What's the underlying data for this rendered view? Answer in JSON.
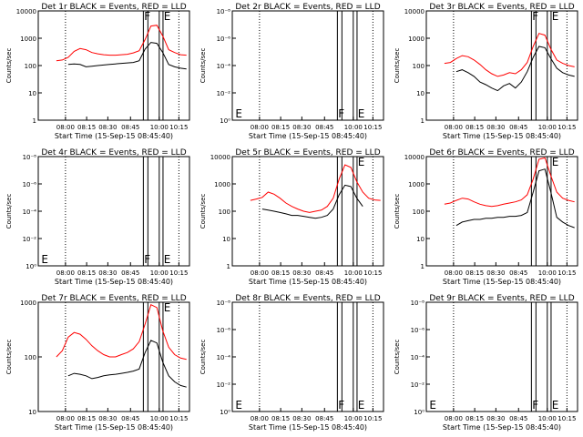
{
  "colors": {
    "events": "#000000",
    "lld": "#ff0000",
    "axes": "#000000"
  },
  "chart_data": [
    {
      "type": "line",
      "title": "Det 1r BLACK = Events, RED = LLD",
      "ylabel": "Counts/sec",
      "xlabel": "Start Time (15-Sep-15 08:45:40)",
      "x_ticks": [
        "08:00",
        "08:15",
        "08:30",
        "08:45",
        "10:00",
        "10:15"
      ],
      "y_scale": "log",
      "ylim": [
        1,
        10000
      ],
      "y_ticks": [
        "1",
        "10",
        "100",
        "1000",
        "10000"
      ],
      "markers": [
        "F",
        "E"
      ],
      "series": [
        {
          "color": "red",
          "values": [
            150,
            160,
            200,
            330,
            420,
            380,
            300,
            270,
            250,
            240,
            240,
            250,
            260,
            290,
            350,
            900,
            2800,
            3000,
            1200,
            380,
            300,
            250,
            240
          ]
        },
        {
          "color": "black",
          "values": [
            null,
            null,
            110,
            115,
            110,
            90,
            95,
            100,
            105,
            110,
            115,
            120,
            125,
            130,
            150,
            400,
            700,
            650,
            300,
            110,
            90,
            80,
            75
          ]
        }
      ]
    },
    {
      "type": "line",
      "title": "Det 2r BLACK = Events, RED = LLD",
      "ylabel": "Counts/sec",
      "xlabel": "Start Time (15-Sep-15 08:45:40)",
      "x_ticks": [
        "08:00",
        "08:15",
        "08:30",
        "08:45",
        "10:00",
        "10:15"
      ],
      "y_scale": "log",
      "y_ticks": [
        "10⁰",
        "10⁻²",
        "10⁻⁴",
        "10⁻⁶",
        "10⁻⁸"
      ],
      "markers": [
        "E",
        "F",
        "E"
      ],
      "series": []
    },
    {
      "type": "line",
      "title": "Det 3r BLACK = Events, RED = LLD",
      "ylabel": "Counts/sec",
      "xlabel": "Start Time (15-Sep-15 08:45:40)",
      "x_ticks": [
        "08:00",
        "08:15",
        "08:30",
        "08:45",
        "10:00",
        "10:15"
      ],
      "y_scale": "log",
      "ylim": [
        1,
        10000
      ],
      "y_ticks": [
        "1",
        "10",
        "100",
        "1000",
        "10000"
      ],
      "markers": [
        "F",
        "E"
      ],
      "series": [
        {
          "color": "red",
          "values": [
            120,
            130,
            180,
            230,
            210,
            160,
            110,
            70,
            50,
            40,
            45,
            55,
            50,
            70,
            130,
            500,
            1500,
            1300,
            400,
            160,
            120,
            100,
            90
          ]
        },
        {
          "color": "black",
          "values": [
            null,
            null,
            60,
            70,
            55,
            40,
            25,
            20,
            15,
            12,
            18,
            22,
            15,
            25,
            60,
            200,
            500,
            450,
            180,
            80,
            55,
            45,
            40
          ]
        }
      ]
    },
    {
      "type": "line",
      "title": "Det 4r BLACK = Events, RED = LLD",
      "ylabel": "Counts/sec",
      "xlabel": "Start Time (15-Sep-15 08:45:40)",
      "x_ticks": [
        "08:00",
        "08:15",
        "08:30",
        "08:45",
        "10:00",
        "10:15"
      ],
      "y_scale": "log",
      "y_ticks": [
        "10⁰",
        "10⁻²",
        "10⁻⁴",
        "10⁻⁶",
        "10⁻⁸"
      ],
      "markers": [
        "E",
        "F",
        "E"
      ],
      "series": []
    },
    {
      "type": "line",
      "title": "Det 5r BLACK = Events, RED = LLD",
      "ylabel": "Counts/sec",
      "xlabel": "Start Time (15-Sep-15 08:45:40)",
      "x_ticks": [
        "08:00",
        "08:15",
        "08:30",
        "08:45",
        "10:00",
        "10:15"
      ],
      "y_scale": "log",
      "ylim": [
        1,
        10000
      ],
      "y_ticks": [
        "1",
        "10",
        "100",
        "1000",
        "10000"
      ],
      "markers": [
        "E"
      ],
      "series": [
        {
          "color": "red",
          "values": [
            250,
            280,
            320,
            500,
            420,
            300,
            200,
            150,
            120,
            100,
            90,
            100,
            110,
            150,
            300,
            1500,
            5000,
            4000,
            1200,
            500,
            300,
            260,
            250
          ]
        },
        {
          "color": "black",
          "values": [
            null,
            null,
            120,
            110,
            100,
            90,
            80,
            70,
            70,
            65,
            60,
            55,
            60,
            70,
            120,
            400,
            900,
            800,
            300,
            150,
            null,
            null,
            null
          ]
        }
      ]
    },
    {
      "type": "line",
      "title": "Det 6r BLACK = Events, RED = LLD",
      "ylabel": "Counts/sec",
      "xlabel": "Start Time (15-Sep-15 08:45:40)",
      "x_ticks": [
        "08:00",
        "08:15",
        "08:30",
        "08:45",
        "10:00",
        "10:15"
      ],
      "y_scale": "log",
      "ylim": [
        1,
        10000
      ],
      "y_ticks": [
        "1",
        "10",
        "100",
        "1000",
        "10000"
      ],
      "markers": [
        "E"
      ],
      "series": [
        {
          "color": "red",
          "values": [
            180,
            200,
            250,
            300,
            280,
            220,
            180,
            160,
            150,
            160,
            180,
            200,
            220,
            260,
            400,
            1500,
            8000,
            9000,
            2000,
            500,
            300,
            250,
            220
          ]
        },
        {
          "color": "black",
          "values": [
            null,
            null,
            30,
            40,
            45,
            50,
            50,
            55,
            55,
            60,
            60,
            65,
            65,
            70,
            90,
            500,
            3000,
            3500,
            500,
            60,
            40,
            30,
            25
          ]
        }
      ]
    },
    {
      "type": "line",
      "title": "Det 7r BLACK = Events, RED = LLD",
      "ylabel": "Counts/sec",
      "xlabel": "Start Time (15-Sep-15 08:45:40)",
      "x_ticks": [
        "08:00",
        "08:15",
        "08:30",
        "08:45",
        "10:00",
        "10:15"
      ],
      "y_scale": "log",
      "ylim": [
        10,
        1000
      ],
      "y_ticks": [
        "10",
        "100",
        "1000"
      ],
      "markers": [
        "E"
      ],
      "series": [
        {
          "color": "red",
          "values": [
            100,
            130,
            230,
            280,
            260,
            210,
            160,
            130,
            110,
            100,
            100,
            110,
            120,
            140,
            190,
            400,
            900,
            800,
            300,
            150,
            110,
            95,
            90
          ]
        },
        {
          "color": "black",
          "values": [
            null,
            null,
            45,
            50,
            48,
            45,
            40,
            42,
            45,
            47,
            48,
            50,
            52,
            55,
            60,
            120,
            200,
            180,
            80,
            45,
            35,
            30,
            28
          ]
        }
      ]
    },
    {
      "type": "line",
      "title": "Det 8r BLACK = Events, RED = LLD",
      "ylabel": "Counts/sec",
      "xlabel": "Start Time (15-Sep-15 08:45:40)",
      "x_ticks": [
        "08:00",
        "08:15",
        "08:30",
        "08:45",
        "10:00",
        "10:15"
      ],
      "y_scale": "log",
      "y_ticks": [
        "10⁰",
        "10⁻²",
        "10⁻⁴",
        "10⁻⁶",
        "10⁻⁸"
      ],
      "markers": [
        "E",
        "F",
        "E"
      ],
      "series": []
    },
    {
      "type": "line",
      "title": "Det 9r BLACK = Events, RED = LLD",
      "ylabel": "Counts/sec",
      "xlabel": "Start Time (15-Sep-15 08:45:40)",
      "x_ticks": [
        "08:00",
        "08:15",
        "08:30",
        "08:45",
        "10:00",
        "10:15"
      ],
      "y_scale": "log",
      "y_ticks": [
        "10⁰",
        "10⁻²",
        "10⁻⁴",
        "10⁻⁶",
        "10⁻⁸"
      ],
      "markers": [
        "E",
        "F",
        "E"
      ],
      "series": []
    }
  ]
}
